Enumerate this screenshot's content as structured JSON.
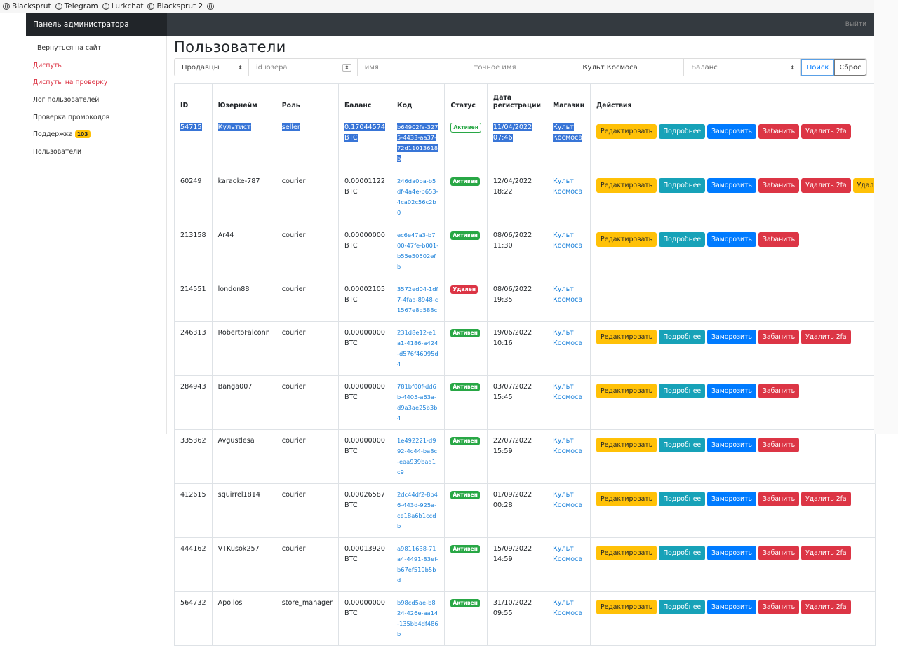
{
  "bookmarks": [
    "Blacksprut",
    "Telegram",
    "Lurkchat",
    "Blacksprut 2"
  ],
  "header": {
    "brand": "Панель администратора",
    "logout": "Выйти"
  },
  "sidebar": {
    "items": [
      {
        "label": "Вернуться на сайт",
        "style": "back"
      },
      {
        "label": "Диспуты",
        "style": "red"
      },
      {
        "label": "Диспуты на проверку",
        "style": "red"
      },
      {
        "label": "Лог пользователей",
        "style": ""
      },
      {
        "label": "Проверка промокодов",
        "style": ""
      },
      {
        "label": "Поддержка",
        "style": "",
        "badge": "103"
      },
      {
        "label": "Пользователи",
        "style": ""
      }
    ]
  },
  "page_title": "Пользователи",
  "filters": {
    "role_select": "Продавцы",
    "user_id_placeholder": "id юзера",
    "name_placeholder": "имя",
    "exact_name_placeholder": "точное имя",
    "shop_value": "Культ Космоса",
    "balance_select": "Баланс",
    "search": "Поиск",
    "reset": "Сброс"
  },
  "colors": {
    "active": "#28a745",
    "deleted": "#dc3545",
    "warning": "#ffc107",
    "info": "#17a2b8",
    "primary": "#007bff",
    "danger": "#dc3545"
  },
  "table": {
    "headers": [
      "ID",
      "Юзернейм",
      "Роль",
      "Баланс",
      "Код",
      "Статус",
      "Дата регистрации",
      "Магазин",
      "Действия"
    ],
    "rows": [
      {
        "id": "54715",
        "username": "Культист",
        "role": "seller",
        "balance": "0.17044574",
        "currency": "BTC",
        "code": "b64902fa-3275-4433-aa37-72d11013618b",
        "status": "Активен",
        "date": "11/04/2022",
        "time": "07:46",
        "shop": "Культ Космоса",
        "selected": true,
        "actions": [
          "Редактировать",
          "Подробнее",
          "Заморозить",
          "Забанить",
          "Удалить 2fa"
        ]
      },
      {
        "id": "60249",
        "username": "karaoke-787",
        "role": "courier",
        "balance": "0.00001122",
        "currency": "BTC",
        "code": "246da0ba-b5df-4a4e-b653-4ca02c56c2b0",
        "status": "Активен",
        "date": "12/04/2022",
        "time": "18:22",
        "shop": "Культ Космоса",
        "actions": [
          "Редактировать",
          "Подробнее",
          "Заморозить",
          "Забанить",
          "Удалить 2fa",
          "Удалить п"
        ]
      },
      {
        "id": "213158",
        "username": "Ar44",
        "role": "courier",
        "balance": "0.00000000",
        "currency": "BTC",
        "code": "ec6e47a3-b700-47fe-b001-b55e50502efb",
        "status": "Активен",
        "date": "08/06/2022",
        "time": "11:30",
        "shop": "Культ Космоса",
        "actions": [
          "Редактировать",
          "Подробнее",
          "Заморозить",
          "Забанить"
        ]
      },
      {
        "id": "214551",
        "username": "london88",
        "role": "courier",
        "balance": "0.00002105",
        "currency": "BTC",
        "code": "3572ed04-1df7-4faa-8948-c1567e8d588c",
        "status": "Удален",
        "date": "08/06/2022",
        "time": "19:35",
        "shop": "Культ Космоса",
        "actions": []
      },
      {
        "id": "246313",
        "username": "RobertoFalconn",
        "role": "courier",
        "balance": "0.00000000",
        "currency": "BTC",
        "code": "231d8e12-e1a1-4186-a424-d576f46995d4",
        "status": "Активен",
        "date": "19/06/2022",
        "time": "10:16",
        "shop": "Культ Космоса",
        "actions": [
          "Редактировать",
          "Подробнее",
          "Заморозить",
          "Забанить",
          "Удалить 2fa"
        ]
      },
      {
        "id": "284943",
        "username": "Banga007",
        "role": "courier",
        "balance": "0.00000000",
        "currency": "BTC",
        "code": "781bf00f-dd6b-4405-a63a-d9a3ae25b3b4",
        "status": "Активен",
        "date": "03/07/2022",
        "time": "15:45",
        "shop": "Культ Космоса",
        "actions": [
          "Редактировать",
          "Подробнее",
          "Заморозить",
          "Забанить"
        ]
      },
      {
        "id": "335362",
        "username": "Avgustlesa",
        "role": "courier",
        "balance": "0.00000000",
        "currency": "BTC",
        "code": "1e492221-d992-4c44-ba8c-eaa939bad1c9",
        "status": "Активен",
        "date": "22/07/2022",
        "time": "15:59",
        "shop": "Культ Космоса",
        "actions": [
          "Редактировать",
          "Подробнее",
          "Заморозить",
          "Забанить"
        ]
      },
      {
        "id": "412615",
        "username": "squirrel1814",
        "role": "courier",
        "balance": "0.00026587",
        "currency": "BTC",
        "code": "2dc44df2-8b46-443d-925a-ce18a6b1ccdb",
        "status": "Активен",
        "date": "01/09/2022",
        "time": "00:28",
        "shop": "Культ Космоса",
        "actions": [
          "Редактировать",
          "Подробнее",
          "Заморозить",
          "Забанить",
          "Удалить 2fa"
        ]
      },
      {
        "id": "444162",
        "username": "VTKusok257",
        "role": "courier",
        "balance": "0.00013920",
        "currency": "BTC",
        "code": "a9811638-71a4-4491-83ef-b67ef519b5bd",
        "status": "Активен",
        "date": "15/09/2022",
        "time": "14:59",
        "shop": "Культ Космоса",
        "actions": [
          "Редактировать",
          "Подробнее",
          "Заморозить",
          "Забанить",
          "Удалить 2fa"
        ]
      },
      {
        "id": "564732",
        "username": "Apollos",
        "role": "store_manager",
        "balance": "0.00000000",
        "currency": "BTC",
        "code": "b98cd5ae-b824-426e-aa14-135bb4df486b",
        "status": "Активен",
        "date": "31/10/2022",
        "time": "09:55",
        "shop": "Культ Космоса",
        "actions": [
          "Редактировать",
          "Подробнее",
          "Заморозить",
          "Забанить",
          "Удалить 2fa"
        ]
      }
    ]
  }
}
